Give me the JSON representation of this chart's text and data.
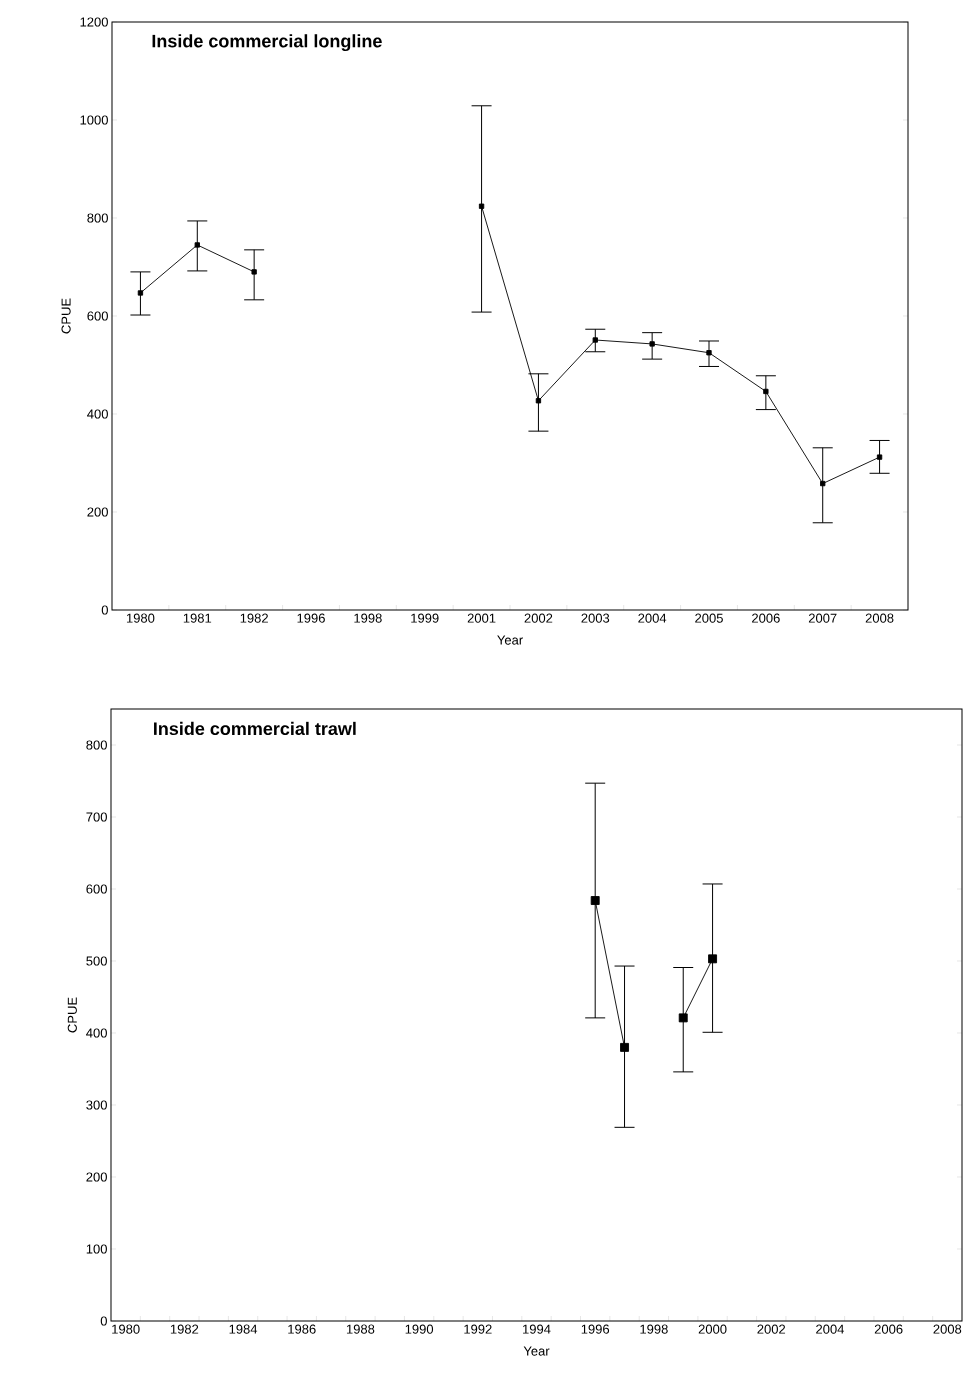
{
  "chart_data": [
    {
      "type": "line",
      "title": "Inside commercial longline",
      "xlabel": "Year",
      "ylabel": "CPUE",
      "categories": [
        "1980",
        "1981",
        "1982",
        "1996",
        "1998",
        "1999",
        "2001",
        "2002",
        "2003",
        "2004",
        "2005",
        "2006",
        "2007",
        "2008"
      ],
      "values": [
        647,
        745,
        690,
        null,
        null,
        null,
        824,
        427,
        551,
        543,
        525,
        446,
        258,
        312
      ],
      "errors": [
        [
          602,
          690
        ],
        [
          692,
          794
        ],
        [
          633,
          735
        ],
        null,
        null,
        null,
        [
          608,
          1029
        ],
        [
          365,
          482
        ],
        [
          527,
          573
        ],
        [
          512,
          566
        ],
        [
          497,
          549
        ],
        [
          409,
          478
        ],
        [
          178,
          331
        ],
        [
          279,
          346
        ]
      ],
      "color": "#000000",
      "marker": "square",
      "ylim": [
        0,
        1200
      ],
      "yticks": [
        0,
        200,
        400,
        600,
        800,
        1000,
        1200
      ]
    },
    {
      "type": "line",
      "title": "Inside commercial trawl",
      "xlabel": "Year",
      "ylabel": "CPUE",
      "categories": [
        "1980",
        null,
        "1982",
        null,
        "1984",
        null,
        "1986",
        null,
        "1988",
        null,
        "1990",
        null,
        "1992",
        null,
        "1994",
        null,
        "1996",
        null,
        "1998",
        null,
        "2000",
        null,
        "2002",
        null,
        "2004",
        null,
        "2006",
        null,
        "2008"
      ],
      "values": [
        null,
        null,
        null,
        null,
        null,
        null,
        null,
        null,
        null,
        null,
        null,
        null,
        null,
        null,
        null,
        null,
        584,
        380,
        null,
        421,
        503,
        null,
        null,
        null,
        null,
        null,
        null,
        null,
        null
      ],
      "errors": [
        null,
        null,
        null,
        null,
        null,
        null,
        null,
        null,
        null,
        null,
        null,
        null,
        null,
        null,
        null,
        null,
        [
          421,
          747
        ],
        [
          269,
          493
        ],
        null,
        [
          346,
          491
        ],
        [
          401,
          607
        ],
        null,
        null,
        null,
        null,
        null,
        null,
        null,
        null
      ],
      "color": "#000000",
      "marker": "square",
      "ylim": [
        0,
        850
      ],
      "yticks": [
        0,
        100,
        200,
        300,
        400,
        500,
        600,
        700,
        800
      ]
    }
  ]
}
